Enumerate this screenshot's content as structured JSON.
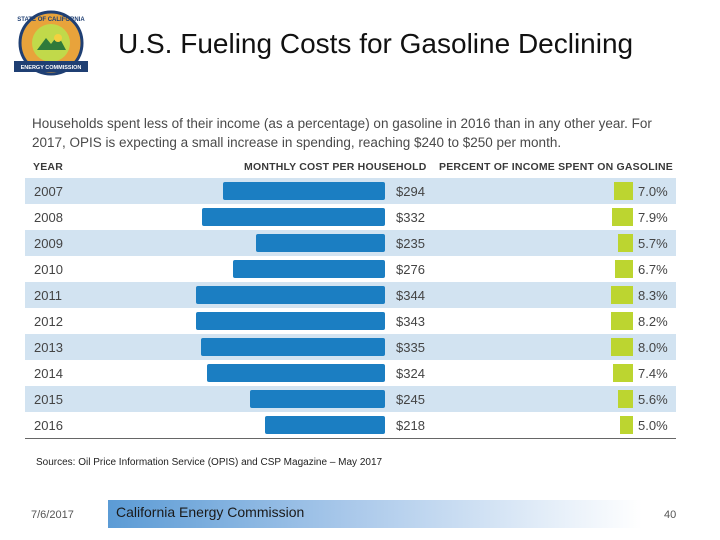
{
  "logo": {
    "top_text": "STATE OF CALIFORNIA",
    "bottom_text": "ENERGY COMMISSION"
  },
  "title": "U.S. Fueling Costs for Gasoline Declining",
  "intro": "Households spent less of their income (as a percentage) on gasoline in 2016 than in any other year. For 2017, OPIS is expecting a small increase in spending, reaching $240 to $250 per month.",
  "headers": {
    "year": "YEAR",
    "cost": "MONTHLY COST PER HOUSEHOLD",
    "percent": "PERCENT OF INCOME SPENT ON GASOLINE"
  },
  "chart_data": {
    "type": "bar",
    "categories": [
      "2007",
      "2008",
      "2009",
      "2010",
      "2011",
      "2012",
      "2013",
      "2014",
      "2015",
      "2016"
    ],
    "series": [
      {
        "name": "Monthly cost per household",
        "values": [
          294,
          332,
          235,
          276,
          344,
          343,
          335,
          324,
          245,
          218
        ],
        "labels": [
          "$294",
          "$332",
          "$235",
          "$276",
          "$344",
          "$343",
          "$335",
          "$324",
          "$245",
          "$218"
        ]
      },
      {
        "name": "Percent of income spent on gasoline",
        "values": [
          7.0,
          7.9,
          5.7,
          6.7,
          8.3,
          8.2,
          8.0,
          7.4,
          5.6,
          5.0
        ],
        "labels": [
          "7.0%",
          "7.9%",
          "5.7%",
          "6.7%",
          "8.3%",
          "8.2%",
          "8.0%",
          "7.4%",
          "5.6%",
          "5.0%"
        ]
      }
    ],
    "colors": {
      "cost_bar": "#1b7ec2",
      "percent_bar": "#bcd530",
      "row_shade": "#d2e3f1"
    }
  },
  "source": "Sources: Oil Price Information Service (OPIS) and CSP Magazine – May 2017",
  "footer": {
    "date": "7/6/2017",
    "org": "California Energy Commission",
    "page": "40"
  }
}
